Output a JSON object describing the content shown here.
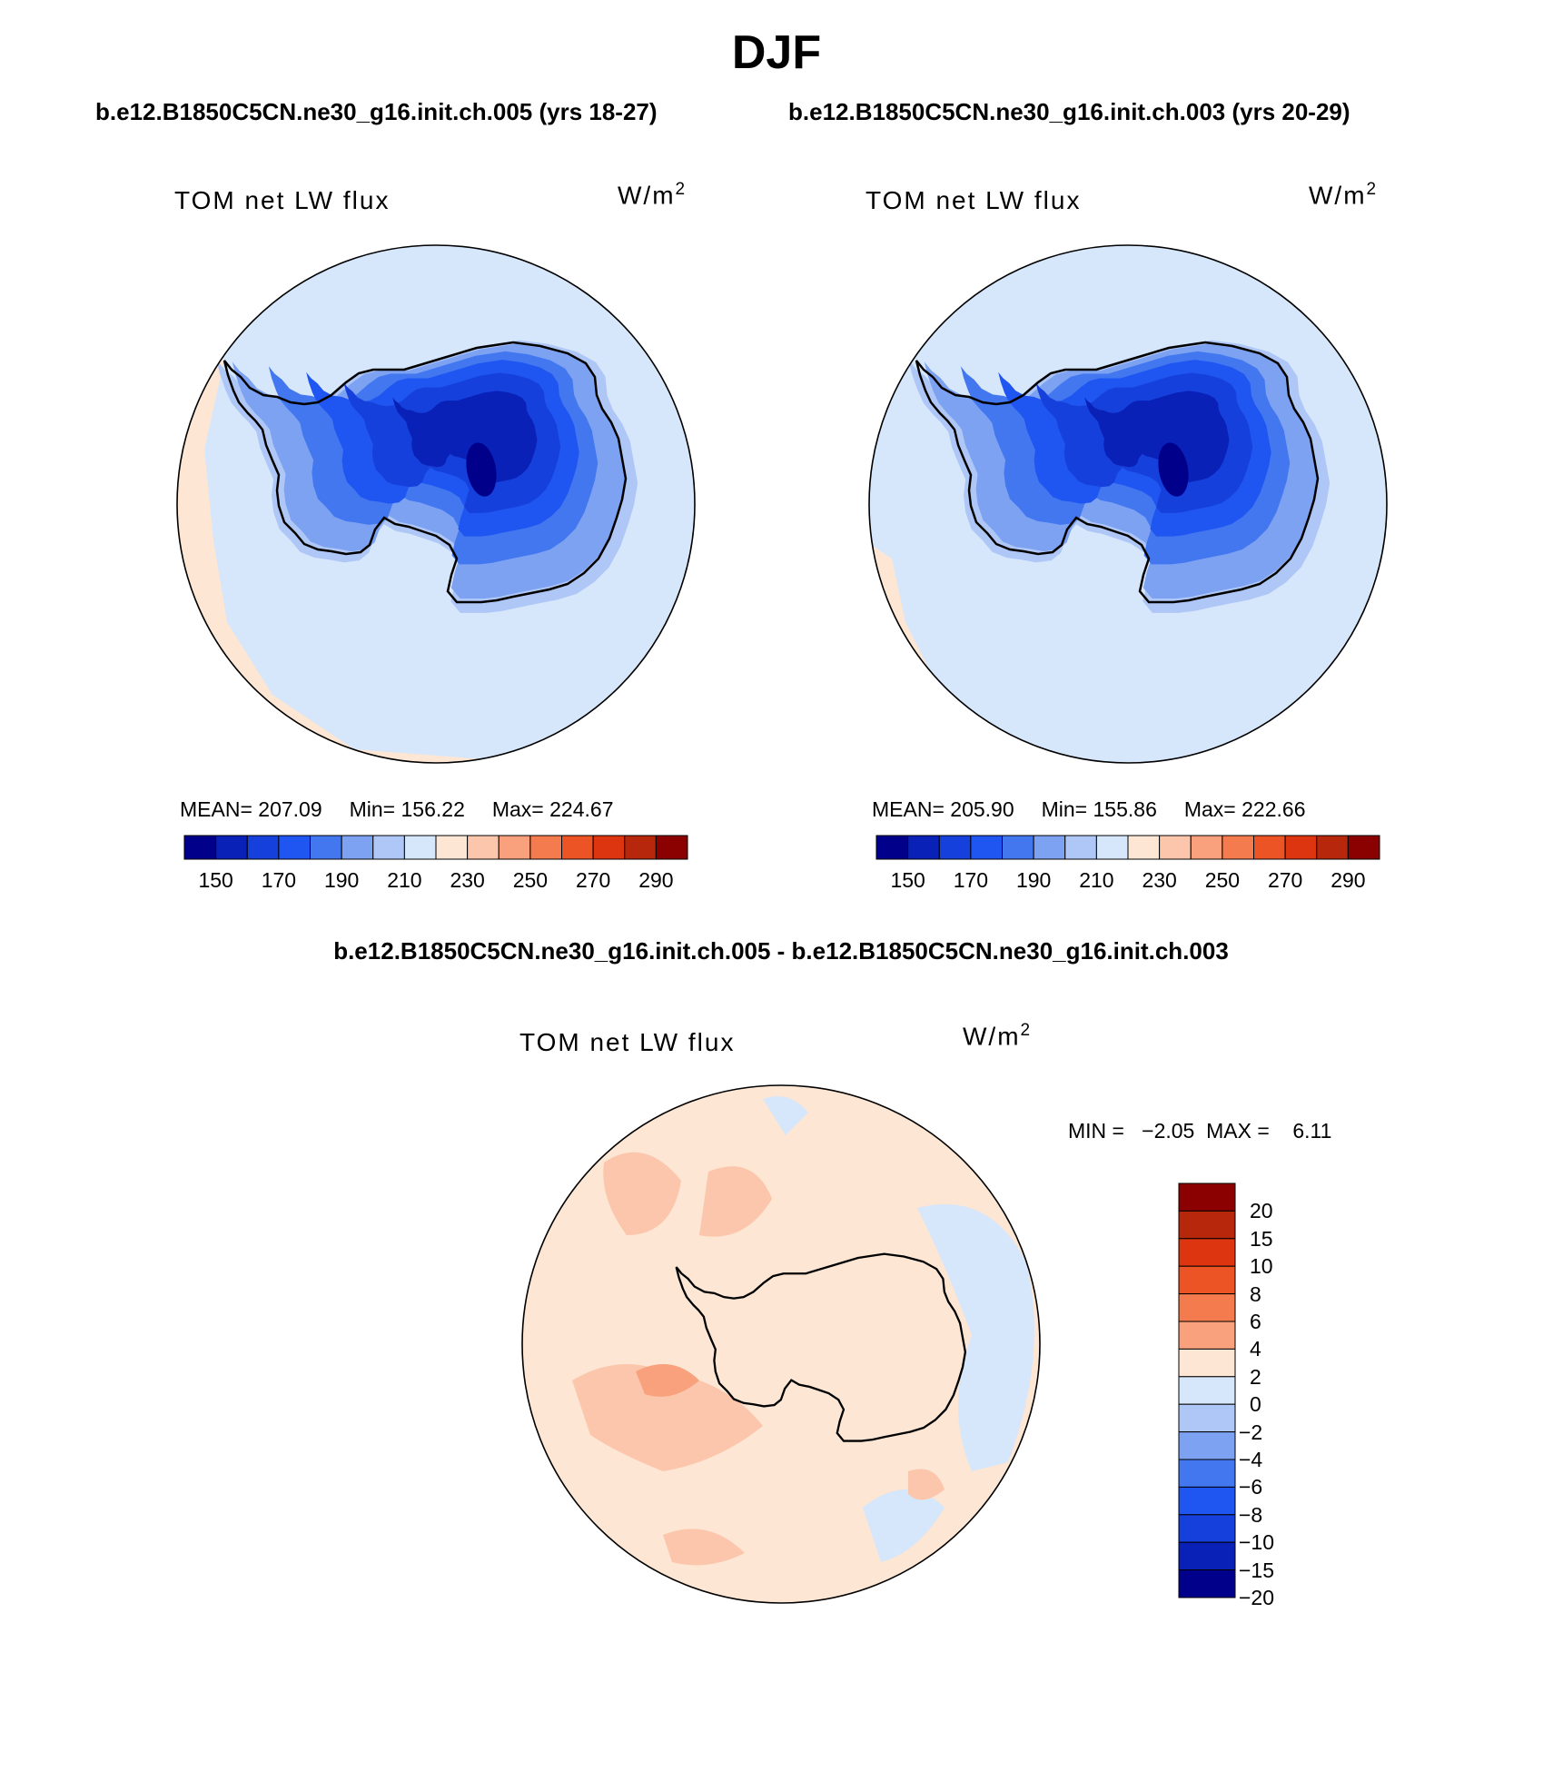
{
  "header": {
    "season": "DJF",
    "subtitle_case1": "b.e12.B1850C5CN.ne30_g16.init.ch.005 (yrs 18-27)",
    "subtitle_case2": "b.e12.B1850C5CN.ne30_g16.init.ch.003 (yrs 20-29)",
    "diff_title": "b.e12.B1850C5CN.ne30_g16.init.ch.005 - b.e12.B1850C5CN.ne30_g16.init.ch.003"
  },
  "panels": [
    {
      "variable": "TOM net LW flux",
      "units_base": "W/m",
      "units_exp": "2",
      "stats": {
        "mean": "MEAN= 207.09",
        "min": "Min= 156.22",
        "max": "Max= 224.67"
      }
    },
    {
      "variable": "TOM net LW flux",
      "units_base": "W/m",
      "units_exp": "2",
      "stats": {
        "mean": "MEAN= 205.90",
        "min": "Min= 155.86",
        "max": "Max= 222.66"
      }
    }
  ],
  "diff_panel": {
    "variable": "TOM net LW flux",
    "units_base": "W/m",
    "units_exp": "2",
    "minmax": "MIN =   −2.05  MAX =    6.11"
  },
  "colorbar_main": {
    "colors": [
      "#00008b",
      "#0a21b8",
      "#1640db",
      "#1f55f0",
      "#4377f0",
      "#7da2f2",
      "#aec7f6",
      "#d6e6fb",
      "#fde6d3",
      "#fbc6ac",
      "#f8a17c",
      "#f37b4e",
      "#ec5426",
      "#dc3510",
      "#b7270b",
      "#8b0000"
    ],
    "ticks": [
      "150",
      "170",
      "190",
      "210",
      "230",
      "250",
      "270",
      "290"
    ]
  },
  "colorbar_diff": {
    "colors": [
      "#8b0000",
      "#b7270b",
      "#dc3510",
      "#ec5426",
      "#f37b4e",
      "#f8a17c",
      "#fde6d3",
      "#d6e6fb",
      "#aec7f6",
      "#7da2f2",
      "#4377f0",
      "#1f55f0",
      "#1640db",
      "#0a21b8",
      "#00008b"
    ],
    "ticks": [
      "20",
      "15",
      "10",
      "8",
      "6",
      "4",
      "2",
      "0",
      "−2",
      "−4",
      "−6",
      "−8",
      "−10",
      "−15",
      "−20"
    ]
  },
  "map_colors": {
    "ocean_main": "#d6e6fb",
    "ocean_warm": "#fde6d3",
    "diff_base": "#fde6d3",
    "diff_warm": "#fbc6ac",
    "diff_hot": "#f8a17c",
    "diff_cool": "#d6e6fb"
  }
}
